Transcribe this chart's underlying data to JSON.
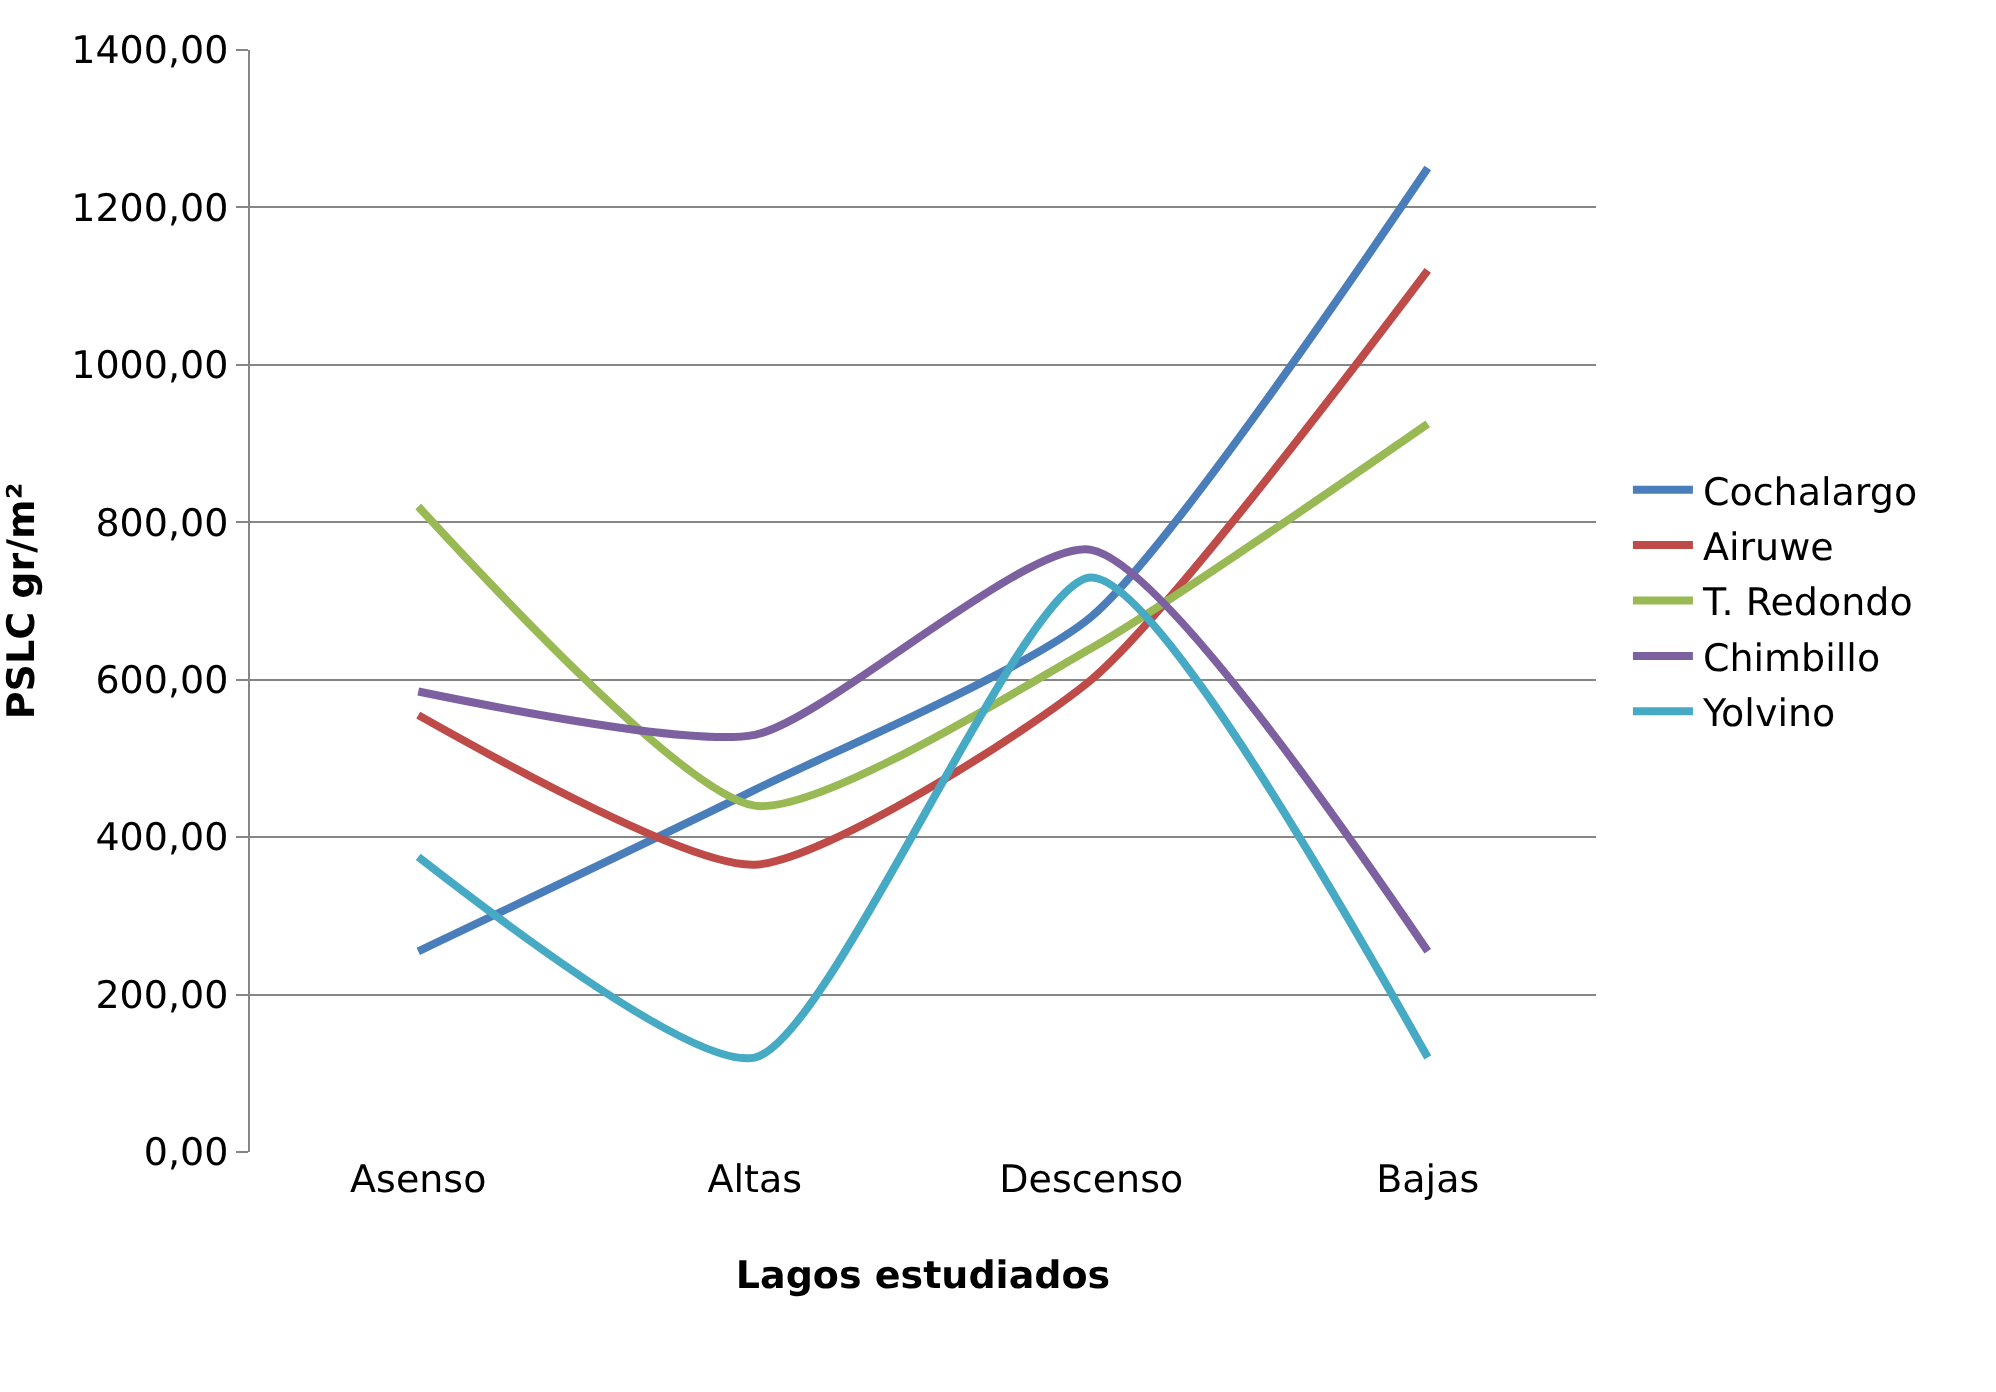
{
  "chart_data": {
    "type": "line",
    "xlabel": "Lagos estudiados",
    "ylabel": "PSLC gr/m²",
    "categories": [
      "Asenso",
      "Altas",
      "Descenso",
      "Bajas"
    ],
    "series": [
      {
        "name": "Cochalargo",
        "color": "#4a7ebb",
        "values": [
          255,
          460,
          680,
          1250
        ]
      },
      {
        "name": "Airuwe",
        "color": "#be4b48",
        "values": [
          555,
          365,
          600,
          1120
        ]
      },
      {
        "name": "T. Redondo",
        "color": "#98b954",
        "values": [
          820,
          440,
          640,
          925
        ]
      },
      {
        "name": "Chimbillo",
        "color": "#7d60a0",
        "values": [
          585,
          530,
          765,
          255
        ]
      },
      {
        "name": "Yolvino",
        "color": "#46aac5",
        "values": [
          375,
          120,
          730,
          120
        ]
      }
    ],
    "ylim": [
      0,
      1400
    ],
    "yticks": [
      {
        "value": 0,
        "label": "0,00"
      },
      {
        "value": 200,
        "label": "200,00"
      },
      {
        "value": 400,
        "label": "400,00"
      },
      {
        "value": 600,
        "label": "600,00"
      },
      {
        "value": 800,
        "label": "800,00"
      },
      {
        "value": 1000,
        "label": "1000,00"
      },
      {
        "value": 1200,
        "label": "1200,00"
      },
      {
        "value": 1400,
        "label": "1400,00"
      }
    ],
    "grid": "y",
    "legend": "right",
    "marker": "none",
    "line_style": "solid"
  }
}
